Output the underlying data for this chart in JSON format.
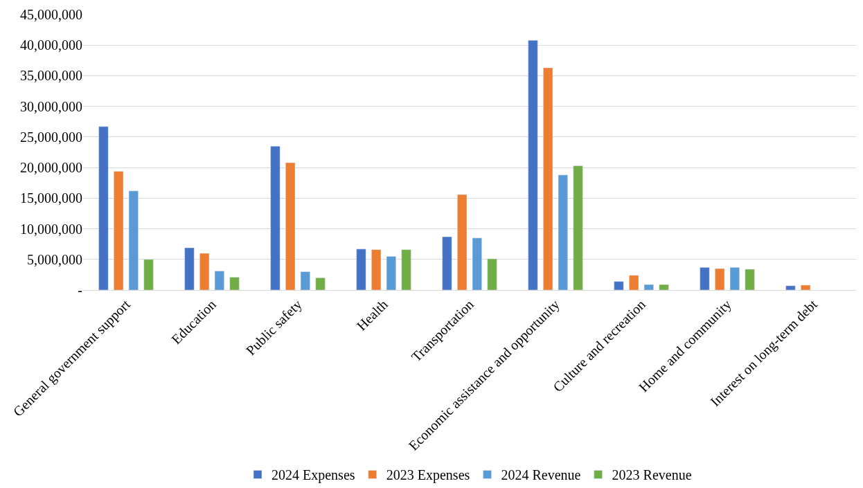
{
  "chart_data": {
    "type": "bar",
    "categories": [
      "General government support",
      "Education",
      "Public safety",
      "Health",
      "Transportation",
      "Economic assistance and opportunity",
      "Culture and recreation",
      "Home and community",
      "Interest on long-term debt"
    ],
    "series": [
      {
        "name": "2024 Expenses",
        "color": "#4472c4",
        "values": [
          26700000,
          6900000,
          23500000,
          6700000,
          8700000,
          40800000,
          1400000,
          3700000,
          700000
        ]
      },
      {
        "name": "2023 Expenses",
        "color": "#ed7d31",
        "values": [
          19400000,
          6000000,
          20800000,
          6600000,
          15600000,
          36300000,
          2400000,
          3500000,
          800000
        ]
      },
      {
        "name": "2024 Revenue",
        "color": "#5b9bd5",
        "values": [
          16200000,
          3100000,
          3000000,
          5500000,
          8500000,
          18800000,
          900000,
          3700000,
          null
        ]
      },
      {
        "name": "2023 Revenue",
        "color": "#70ad47",
        "values": [
          5000000,
          2100000,
          2000000,
          6600000,
          5100000,
          20300000,
          900000,
          3400000,
          null
        ]
      }
    ],
    "ylim": [
      0,
      45000000
    ],
    "yticks": [
      {
        "value": 0,
        "label": "-"
      },
      {
        "value": 5000000,
        "label": "5,000,000"
      },
      {
        "value": 10000000,
        "label": "10,000,000"
      },
      {
        "value": 15000000,
        "label": "15,000,000"
      },
      {
        "value": 20000000,
        "label": "20,000,000"
      },
      {
        "value": 25000000,
        "label": "25,000,000"
      },
      {
        "value": 30000000,
        "label": "30,000,000"
      },
      {
        "value": 35000000,
        "label": "35,000,000"
      },
      {
        "value": 40000000,
        "label": "40,000,000"
      },
      {
        "value": 45000000,
        "label": "45,000,000"
      }
    ],
    "grid": "y",
    "legend": "bottom"
  }
}
